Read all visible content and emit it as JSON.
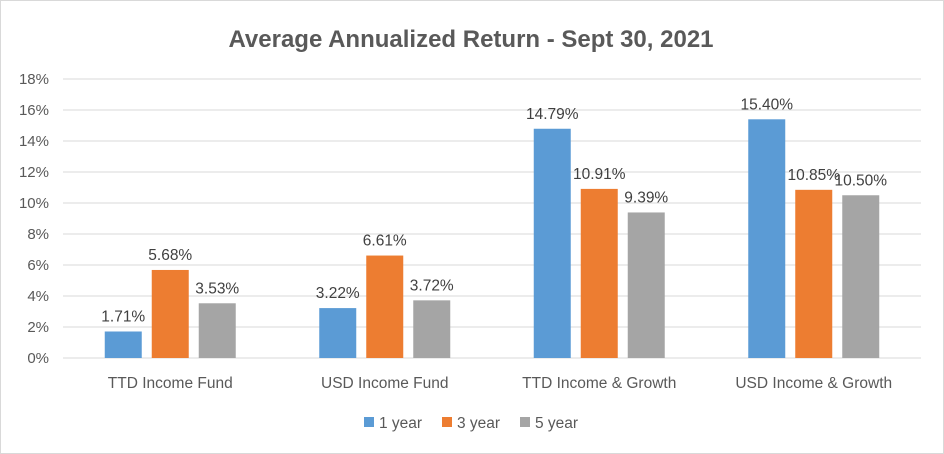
{
  "chart_data": {
    "type": "bar",
    "title": "Average Annualized Return - Sept 30, 2021",
    "xlabel": "",
    "ylabel": "",
    "categories": [
      "TTD Income Fund",
      "USD Income Fund",
      "TTD Income & Growth",
      "USD Income & Growth"
    ],
    "series": [
      {
        "name": "1 year",
        "color": "#5b9bd5",
        "values": [
          1.71,
          3.22,
          14.79,
          15.4
        ],
        "labels": [
          "1.71%",
          "3.22%",
          "14.79%",
          "15.40%"
        ]
      },
      {
        "name": "3 year",
        "color": "#ed7d31",
        "values": [
          5.68,
          6.61,
          10.91,
          10.85
        ],
        "labels": [
          "5.68%",
          "6.61%",
          "10.91%",
          "10.85%"
        ]
      },
      {
        "name": "5 year",
        "color": "#a5a5a5",
        "values": [
          3.53,
          3.72,
          9.39,
          10.5
        ],
        "labels": [
          "3.53%",
          "3.72%",
          "9.39%",
          "10.50%"
        ]
      }
    ],
    "ylim": [
      0,
      18
    ],
    "yticks": [
      0,
      2,
      4,
      6,
      8,
      10,
      12,
      14,
      16,
      18
    ],
    "ytick_labels": [
      "0%",
      "2%",
      "4%",
      "6%",
      "8%",
      "10%",
      "12%",
      "14%",
      "16%",
      "18%"
    ],
    "grid": true,
    "gridline_color": "#d9d9d9",
    "legend_position": "bottom-center"
  }
}
